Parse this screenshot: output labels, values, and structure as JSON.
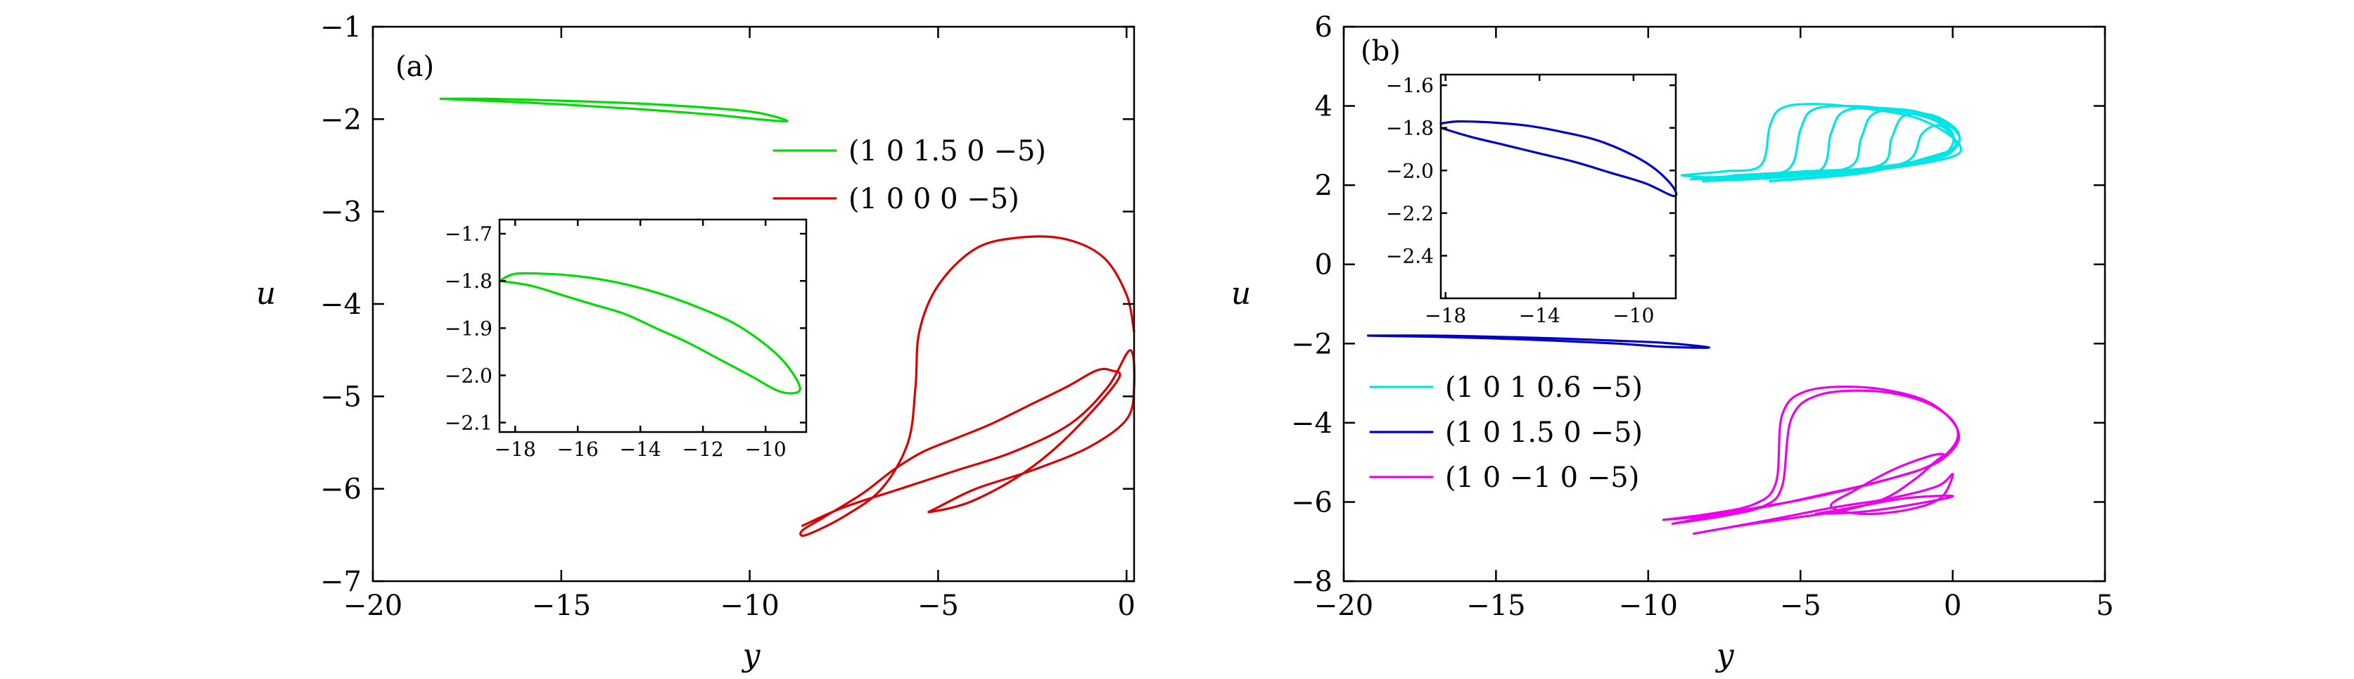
{
  "chart_data": [
    {
      "type": "line",
      "panel_label": "(a)",
      "xlabel": "y",
      "ylabel": "u",
      "xlim": [
        -20,
        0.2
      ],
      "ylim": [
        -7,
        -1
      ],
      "xticks": [
        -20,
        -15,
        -10,
        -5,
        0
      ],
      "xtick_labels": [
        "−20",
        "−15",
        "−10",
        "−5",
        "0"
      ],
      "yticks": [
        -7,
        -6,
        -5,
        -4,
        -3,
        -2,
        -1
      ],
      "ytick_labels": [
        "−7",
        "−6",
        "−5",
        "−4",
        "−3",
        "−2",
        "−1"
      ],
      "legend_position": "upper-right",
      "series": [
        {
          "name": "(1  0  1.5  0  −5)",
          "color": "#00dd00",
          "x": [
            -18.2,
            -17.0,
            -15.0,
            -13.0,
            -11.0,
            -9.8,
            -9.0,
            -9.8,
            -11.0,
            -13.0,
            -15.0,
            -17.0,
            -18.2
          ],
          "y": [
            -1.78,
            -1.78,
            -1.8,
            -1.83,
            -1.88,
            -1.93,
            -2.02,
            -2.0,
            -1.95,
            -1.89,
            -1.84,
            -1.8,
            -1.78
          ]
        },
        {
          "name": "(1  0  0  0  −5)",
          "color": "#dd0000",
          "x": [
            0.2,
            0.0,
            -0.6,
            -1.6,
            -2.8,
            -4.0,
            -5.0,
            -5.5,
            -5.6,
            -5.8,
            -6.5,
            -7.5,
            -8.5,
            -8.6,
            -8.0,
            -7.0,
            -6.2,
            -5.4,
            -4.5,
            -3.6,
            -2.6,
            -1.6,
            -0.8,
            -0.4,
            -0.2,
            -1.0,
            -2.0,
            -3.0,
            -4.2,
            -5.2,
            -5.0,
            -4.0,
            -2.5,
            -1.0,
            0.0,
            0.2,
            0.1,
            -0.5,
            -1.5,
            -3.0,
            -4.5,
            -6.0,
            -7.5,
            -8.6
          ],
          "y": [
            -4.3,
            -3.9,
            -3.5,
            -3.3,
            -3.28,
            -3.4,
            -3.8,
            -4.3,
            -4.9,
            -5.5,
            -6.0,
            -6.3,
            -6.5,
            -6.45,
            -6.3,
            -6.05,
            -5.8,
            -5.6,
            -5.45,
            -5.3,
            -5.1,
            -4.9,
            -4.72,
            -4.72,
            -4.8,
            -5.2,
            -5.6,
            -5.9,
            -6.15,
            -6.25,
            -6.2,
            -6.0,
            -5.8,
            -5.55,
            -5.25,
            -4.9,
            -4.5,
            -4.9,
            -5.3,
            -5.6,
            -5.8,
            -6.0,
            -6.2,
            -6.4
          ]
        }
      ],
      "inset": {
        "xlim": [
          -18.5,
          -8.7
        ],
        "ylim": [
          -2.12,
          -1.67
        ],
        "xticks": [
          -18,
          -16,
          -14,
          -12,
          -10
        ],
        "xtick_labels": [
          "−18",
          "−16",
          "−14",
          "−12",
          "−10"
        ],
        "yticks": [
          -2.1,
          -2.0,
          -1.9,
          -1.8,
          -1.7
        ],
        "ytick_labels": [
          "−2.1",
          "−2.0",
          "−1.9",
          "−1.8",
          "−1.7"
        ],
        "series": [
          {
            "color": "#00dd00",
            "x": [
              -18.5,
              -18.0,
              -17.0,
              -16.0,
              -15.0,
              -14.0,
              -13.0,
              -12.0,
              -11.0,
              -10.0,
              -9.3,
              -8.9,
              -9.5,
              -10.5,
              -11.5,
              -12.5,
              -13.5,
              -14.5,
              -15.5,
              -16.5,
              -17.5,
              -18.5
            ],
            "y": [
              -1.8,
              -1.785,
              -1.785,
              -1.79,
              -1.8,
              -1.815,
              -1.835,
              -1.86,
              -1.89,
              -1.935,
              -1.98,
              -2.03,
              -2.035,
              -2.0,
              -1.965,
              -1.93,
              -1.9,
              -1.87,
              -1.85,
              -1.83,
              -1.81,
              -1.8
            ]
          }
        ]
      }
    },
    {
      "type": "line",
      "panel_label": "(b)",
      "xlabel": "y",
      "ylabel": "u",
      "xlim": [
        -20,
        5
      ],
      "ylim": [
        -8,
        6
      ],
      "xticks": [
        -20,
        -15,
        -10,
        -5,
        0,
        5
      ],
      "xtick_labels": [
        "−20",
        "−15",
        "−10",
        "−5",
        "0",
        "5"
      ],
      "yticks": [
        -8,
        -6,
        -4,
        -2,
        0,
        2,
        4,
        6
      ],
      "ytick_labels": [
        "−8",
        "−6",
        "−4",
        "−2",
        "0",
        "2",
        "4",
        "6"
      ],
      "legend_position": "lower-left",
      "series": [
        {
          "name": "(1  0  1  0.6  −5)",
          "color": "#00e5e5",
          "loops": [
            {
              "x": [
                -8.9,
                -7.5,
                -6.3,
                -6.0,
                -5.6,
                -4.5,
                -3.0,
                -1.2,
                0.0,
                0.2,
                -1.0,
                -3.0,
                -5.5,
                -8.0,
                -8.9
              ],
              "y": [
                2.25,
                2.35,
                2.5,
                3.5,
                3.95,
                4.05,
                3.95,
                3.7,
                3.2,
                2.8,
                2.55,
                2.35,
                2.25,
                2.2,
                2.25
              ]
            },
            {
              "x": [
                -8.6,
                -7.0,
                -5.4,
                -5.0,
                -4.6,
                -3.5,
                -2.0,
                -0.5,
                0.1,
                -0.8,
                -3.5,
                -6.0,
                -8.6
              ],
              "y": [
                2.15,
                2.25,
                2.4,
                3.4,
                3.9,
                4.0,
                3.9,
                3.6,
                3.0,
                2.6,
                2.35,
                2.2,
                2.15
              ]
            },
            {
              "x": [
                -8.2,
                -6.5,
                -4.4,
                -4.0,
                -3.6,
                -2.5,
                -1.0,
                0.0,
                -0.5,
                -3.0,
                -5.5,
                -8.2
              ],
              "y": [
                2.1,
                2.2,
                2.35,
                3.3,
                3.85,
                3.95,
                3.8,
                3.3,
                2.7,
                2.4,
                2.2,
                2.1
              ]
            },
            {
              "x": [
                -7.8,
                -5.5,
                -3.4,
                -3.0,
                -2.6,
                -1.5,
                -0.3,
                0.2,
                -1.0,
                -4.0,
                -7.8
              ],
              "y": [
                2.2,
                2.3,
                2.45,
                3.2,
                3.8,
                3.9,
                3.6,
                3.1,
                2.6,
                2.3,
                2.2
              ]
            },
            {
              "x": [
                -7.2,
                -4.8,
                -2.4,
                -2.0,
                -1.6,
                -0.6,
                0.2,
                -0.2,
                -2.5,
                -5.5,
                -7.2
              ],
              "y": [
                2.25,
                2.35,
                2.5,
                3.2,
                3.75,
                3.75,
                3.3,
                2.8,
                2.45,
                2.3,
                2.25
              ]
            },
            {
              "x": [
                -6.0,
                -3.5,
                -1.5,
                -1.0,
                -0.4,
                0.1,
                -0.8,
                -3.0,
                -6.0
              ],
              "y": [
                2.1,
                2.3,
                2.6,
                3.3,
                3.5,
                3.0,
                2.7,
                2.3,
                2.1
              ]
            }
          ]
        },
        {
          "name": "(1  0  1.5  0  −5)",
          "color": "#0000cc",
          "loops": [
            {
              "x": [
                -19.2,
                -17.0,
                -15.0,
                -13.0,
                -11.0,
                -9.5,
                -8.0,
                -9.5,
                -11.0,
                -13.0,
                -15.0,
                -17.0,
                -19.2
              ],
              "y": [
                -1.8,
                -1.8,
                -1.83,
                -1.87,
                -1.93,
                -1.98,
                -2.1,
                -2.08,
                -2.0,
                -1.93,
                -1.87,
                -1.83,
                -1.8
              ]
            }
          ]
        },
        {
          "name": "(1  0  −1  0  −5)",
          "color": "#ee00ee",
          "loops": [
            {
              "x": [
                -9.5,
                -8.0,
                -6.5,
                -5.8,
                -5.6,
                -4.8,
                -3.0,
                -1.2,
                -0.2,
                0.2,
                -0.5,
                -2.0,
                -3.5,
                -5.0,
                -6.5,
                -8.0,
                -9.5
              ],
              "y": [
                -6.45,
                -6.3,
                -6.05,
                -5.5,
                -3.8,
                -3.2,
                -3.1,
                -3.35,
                -3.8,
                -4.4,
                -5.0,
                -5.4,
                -5.7,
                -5.95,
                -6.15,
                -6.35,
                -6.45
              ]
            },
            {
              "x": [
                -9.2,
                -7.5,
                -6.2,
                -5.6,
                -5.3,
                -4.4,
                -2.6,
                -1.0,
                0.0,
                0.1,
                -0.8,
                -2.5,
                -4.2,
                -6.0,
                -7.5,
                -9.2
              ],
              "y": [
                -6.55,
                -6.35,
                -6.1,
                -5.6,
                -3.9,
                -3.3,
                -3.2,
                -3.45,
                -3.95,
                -4.5,
                -5.1,
                -5.5,
                -5.8,
                -6.1,
                -6.3,
                -6.55
              ]
            },
            {
              "x": [
                -8.5,
                -7.0,
                -5.2,
                -3.5,
                -2.2,
                -1.2,
                -0.6,
                -0.3,
                -0.8,
                -2.0,
                -3.2,
                -4.0,
                -3.0,
                -1.5,
                -0.4,
                0.0,
                -0.5,
                -2.0,
                -4.0,
                -6.0,
                -8.5
              ],
              "y": [
                -6.8,
                -6.6,
                -6.4,
                -6.2,
                -5.9,
                -5.4,
                -5.0,
                -4.8,
                -4.85,
                -5.2,
                -5.7,
                -6.1,
                -6.3,
                -6.2,
                -5.9,
                -5.3,
                -5.6,
                -5.9,
                -6.15,
                -6.45,
                -6.8
              ]
            },
            {
              "x": [
                -4.5,
                -3.0,
                -1.5,
                0.0,
                -1.2,
                -3.0,
                -4.5
              ],
              "y": [
                -6.3,
                -6.1,
                -5.9,
                -5.85,
                -6.05,
                -6.25,
                -6.3
              ]
            }
          ]
        }
      ],
      "inset": {
        "xlim": [
          -18.2,
          -8.2
        ],
        "ylim": [
          -2.6,
          -1.55
        ],
        "xticks": [
          -18,
          -14,
          -10
        ],
        "xtick_labels": [
          "−18",
          "−14",
          "−10"
        ],
        "yticks": [
          -2.4,
          -2.2,
          -2.0,
          -1.8,
          -1.6
        ],
        "ytick_labels": [
          "−2.4",
          "−2.2",
          "−2.0",
          "−1.8",
          "−1.6"
        ],
        "series": [
          {
            "color": "#0000cc",
            "x": [
              -18.2,
              -17.5,
              -16.0,
              -14.5,
              -13.0,
              -11.5,
              -10.0,
              -9.0,
              -8.3,
              -8.3,
              -9.5,
              -11.0,
              -12.5,
              -14.0,
              -15.5,
              -17.0,
              -18.2
            ],
            "y": [
              -1.78,
              -1.77,
              -1.775,
              -1.79,
              -1.82,
              -1.86,
              -1.93,
              -2.0,
              -2.08,
              -2.12,
              -2.06,
              -2.01,
              -1.96,
              -1.92,
              -1.88,
              -1.84,
              -1.8
            ]
          }
        ]
      }
    }
  ]
}
